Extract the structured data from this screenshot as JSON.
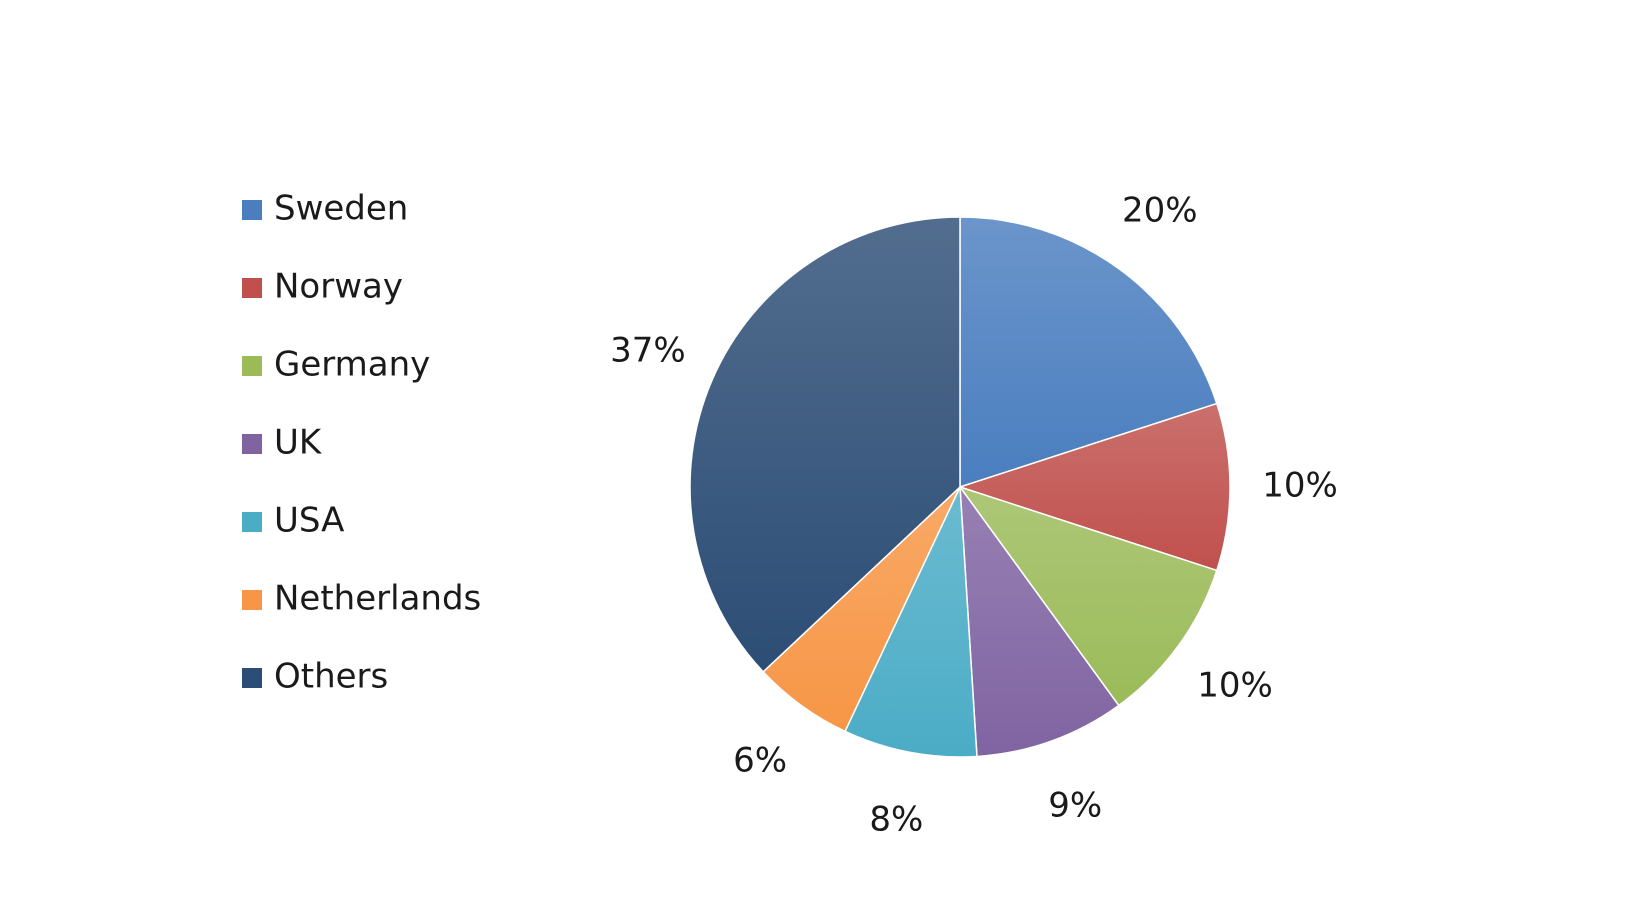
{
  "chart_data": {
    "type": "pie",
    "title": "",
    "categories": [
      "Sweden",
      "Norway",
      "Germany",
      "UK",
      "USA",
      "Netherlands",
      "Others"
    ],
    "values": [
      20,
      10,
      10,
      9,
      8,
      6,
      37
    ],
    "data_labels": [
      "20%",
      "10%",
      "10%",
      "9%",
      "8%",
      "6%",
      "37%"
    ],
    "colors": [
      "#4a7ebf",
      "#c0504d",
      "#9bbb59",
      "#8064a2",
      "#4bacc6",
      "#f79646",
      "#2c4d75"
    ],
    "start_angle_deg": 0,
    "direction": "clockwise",
    "legend_position": "left"
  }
}
